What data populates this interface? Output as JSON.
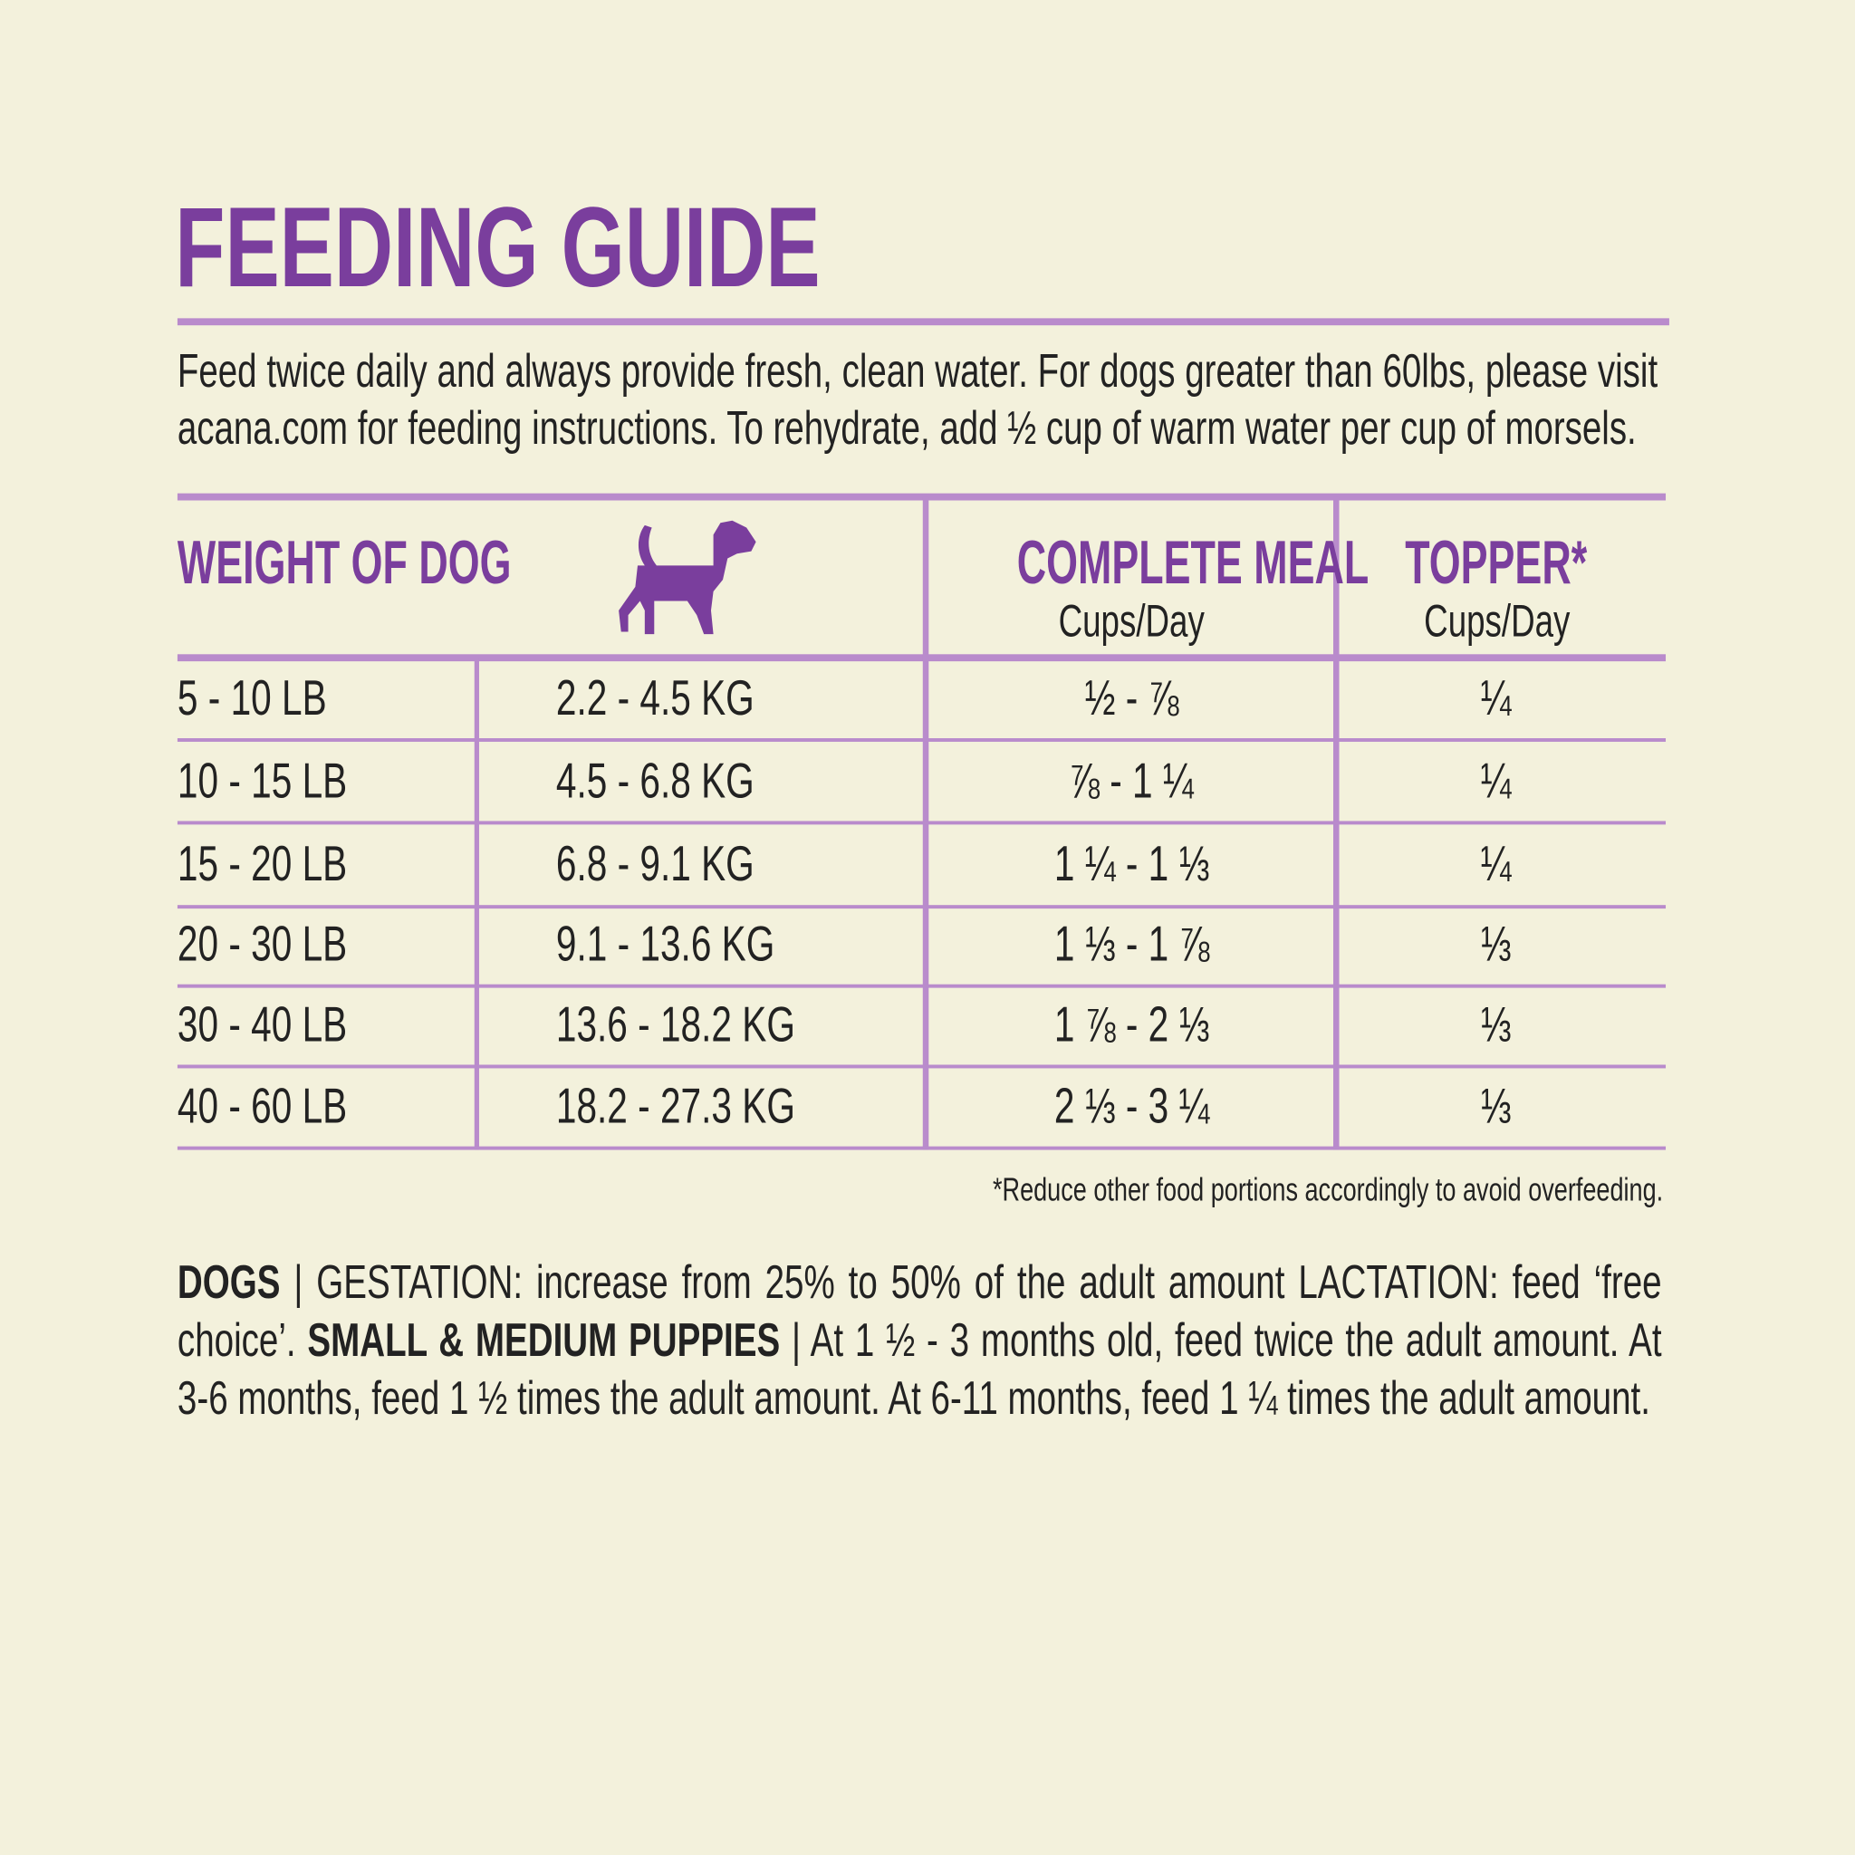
{
  "header": {
    "title": "FEEDING GUIDE",
    "intro": "Feed twice daily and always provide fresh, clean water. For dogs greater than 60lbs, please visit acana.com for feeding instructions. To rehydrate, add ½ cup of warm water per cup of morsels."
  },
  "table": {
    "columns": {
      "weight": "WEIGHT OF DOG",
      "complete": "COMPLETE MEAL",
      "complete_unit": "Cups/Day",
      "topper": "TOPPER*",
      "topper_unit": "Cups/Day"
    },
    "rows": [
      [
        "5 - 10 LB",
        "2.2 - 4.5 KG",
        "½ - ⅞",
        "¼"
      ],
      [
        "10 - 15 LB",
        "4.5 - 6.8 KG",
        "⅞ - 1 ¼",
        "¼"
      ],
      [
        "15 - 20 LB",
        "6.8 - 9.1 KG",
        "1 ¼ - 1 ⅓",
        "¼"
      ],
      [
        "20 - 30 LB",
        "9.1 - 13.6 KG",
        "1 ⅓ - 1 ⅞",
        "⅓"
      ],
      [
        "30 - 40 LB",
        "13.6 - 18.2 KG",
        "1 ⅞ - 2 ⅓",
        "⅓"
      ],
      [
        "40 - 60 LB",
        "18.2 - 27.3 KG",
        "2 ⅓ - 3 ¼",
        "⅓"
      ]
    ],
    "footnote": "*Reduce other food portions accordingly to avoid overfeeding."
  },
  "notes": [
    {
      "text": "DOGS",
      "bold": true
    },
    {
      "text": " | GESTATION: increase from 25% to 50% of the adult amount LACTATION: feed ‘free choice’. ",
      "bold": false
    },
    {
      "text": "SMALL & MEDIUM PUPPIES",
      "bold": true
    },
    {
      "text": " | At 1 ½ - 3 months old, feed twice the adult amount. At 3-6 months, feed 1 ½ times the adult amount. At 6-11 months, feed 1 ¼ times the adult amount.",
      "bold": false
    }
  ]
}
